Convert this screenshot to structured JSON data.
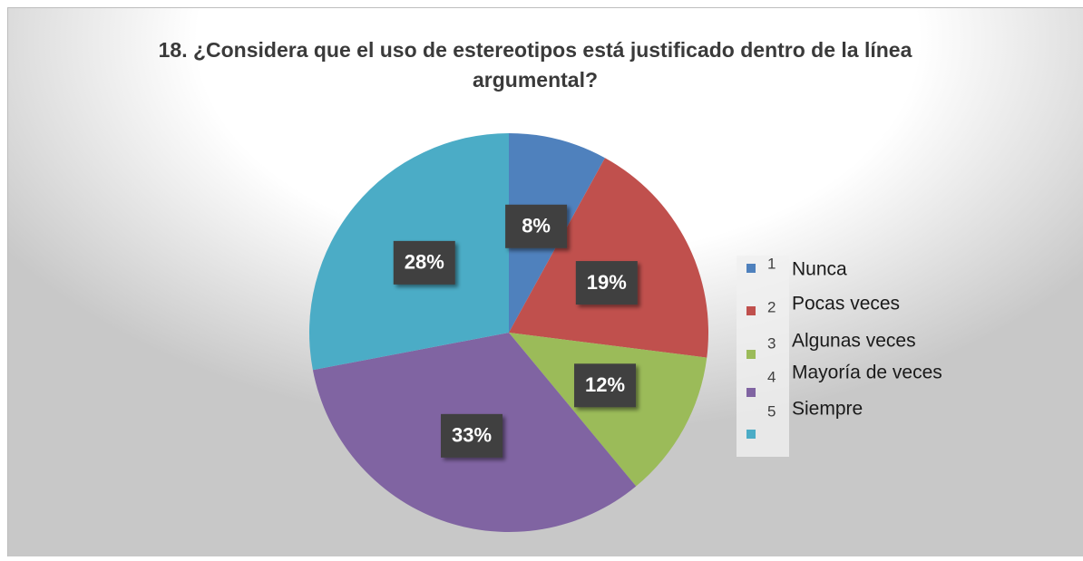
{
  "chart_data": {
    "type": "pie",
    "title": [
      "18. ¿Considera que el uso de estereotipos está justificado dentro de la línea",
      "argumental?"
    ],
    "categories": [
      "1",
      "2",
      "3",
      "4",
      "5"
    ],
    "labels": [
      "Nunca",
      "Pocas veces",
      "Algunas veces",
      "Mayoría de veces",
      "Siempre"
    ],
    "values": [
      8,
      19,
      12,
      33,
      28
    ],
    "value_labels": [
      "8%",
      "19%",
      "12%",
      "33%",
      "28%"
    ],
    "colors": [
      "#4f81bd",
      "#c0504d",
      "#9bbb59",
      "#8064a2",
      "#4bacc6"
    ],
    "legend": "right"
  }
}
